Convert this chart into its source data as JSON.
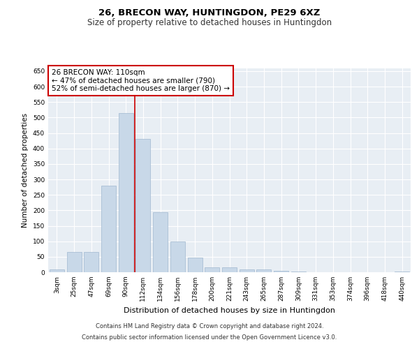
{
  "title1": "26, BRECON WAY, HUNTINGDON, PE29 6XZ",
  "title2": "Size of property relative to detached houses in Huntingdon",
  "xlabel": "Distribution of detached houses by size in Huntingdon",
  "ylabel": "Number of detached properties",
  "categories": [
    "3sqm",
    "25sqm",
    "47sqm",
    "69sqm",
    "90sqm",
    "112sqm",
    "134sqm",
    "156sqm",
    "178sqm",
    "200sqm",
    "221sqm",
    "243sqm",
    "265sqm",
    "287sqm",
    "309sqm",
    "331sqm",
    "353sqm",
    "374sqm",
    "396sqm",
    "418sqm",
    "440sqm"
  ],
  "values": [
    8,
    65,
    65,
    280,
    515,
    430,
    193,
    100,
    47,
    15,
    15,
    10,
    8,
    4,
    2,
    1,
    1,
    0,
    0,
    0,
    2
  ],
  "bar_color": "#c8d8e8",
  "bar_edge_color": "#a0b8d0",
  "vline_x": 4.5,
  "vline_color": "#cc0000",
  "annotation_text": "26 BRECON WAY: 110sqm\n← 47% of detached houses are smaller (790)\n52% of semi-detached houses are larger (870) →",
  "annotation_box_color": "#ffffff",
  "annotation_box_edge": "#cc0000",
  "ylim": [
    0,
    660
  ],
  "yticks": [
    0,
    50,
    100,
    150,
    200,
    250,
    300,
    350,
    400,
    450,
    500,
    550,
    600,
    650
  ],
  "background_color": "#e8eef4",
  "grid_color": "#ffffff",
  "footer1": "Contains HM Land Registry data © Crown copyright and database right 2024.",
  "footer2": "Contains public sector information licensed under the Open Government Licence v3.0.",
  "title1_fontsize": 9.5,
  "title2_fontsize": 8.5,
  "xlabel_fontsize": 8,
  "ylabel_fontsize": 7.5,
  "tick_fontsize": 6.5,
  "annotation_fontsize": 7.5,
  "footer_fontsize": 6.0
}
